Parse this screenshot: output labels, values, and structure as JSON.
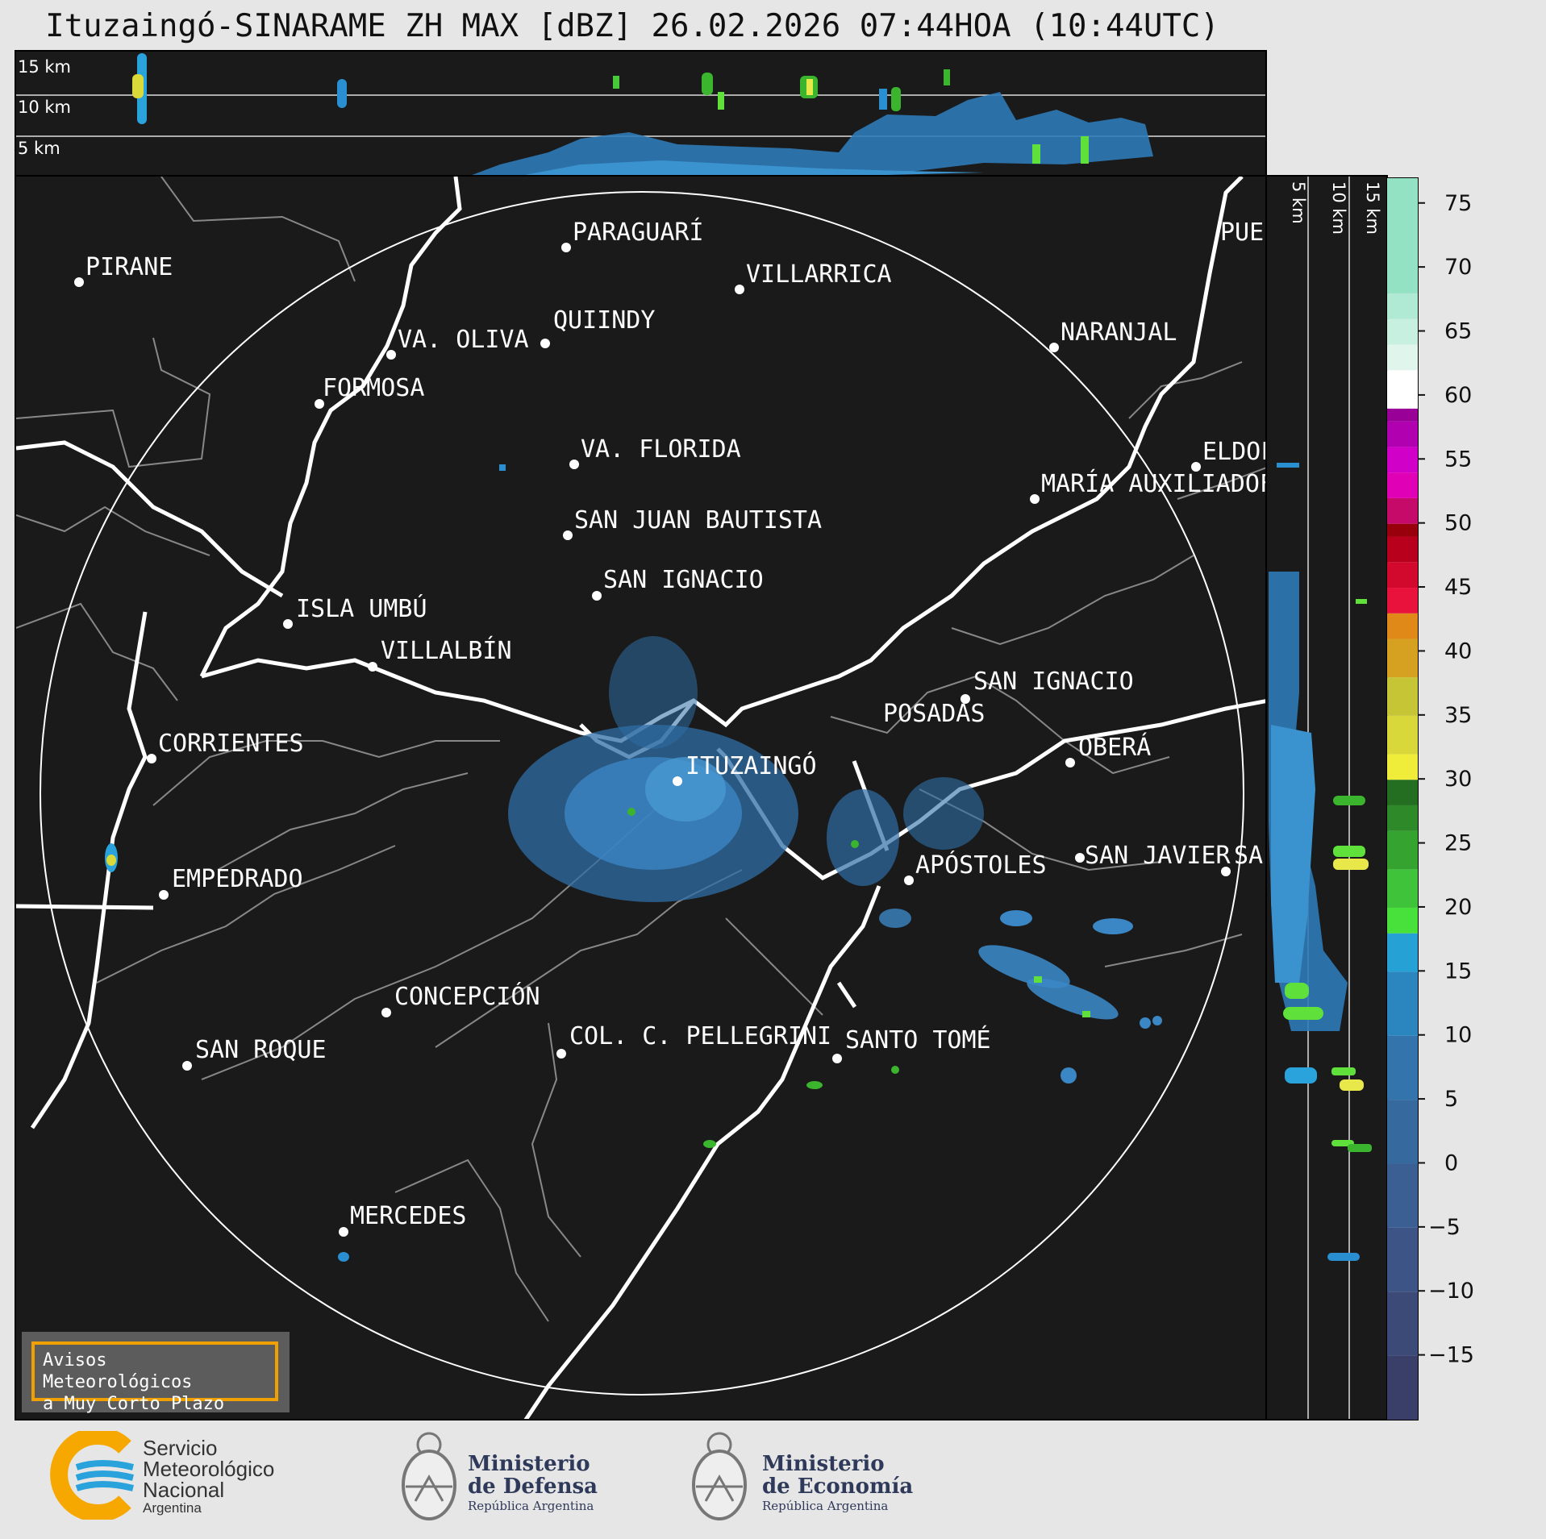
{
  "title": "Ituzaingó-SINARAME ZH MAX [dBZ] 26.02.2026 07:44HOA (10:44UTC)",
  "height_panel_top": {
    "labels": [
      "15 km",
      "10 km",
      "5 km"
    ]
  },
  "height_panel_side": {
    "labels": [
      "5 km",
      "10 km",
      "15 km"
    ]
  },
  "cities": [
    {
      "name": "PIRANE"
    },
    {
      "name": "PARAGUARÍ"
    },
    {
      "name": "VILLARRICA"
    },
    {
      "name": "QUIINDY"
    },
    {
      "name": "VA. OLIVA"
    },
    {
      "name": "FORMOSA"
    },
    {
      "name": "NARANJAL"
    },
    {
      "name": "PUEF"
    },
    {
      "name": "VA. FLORIDA"
    },
    {
      "name": "ELDOF"
    },
    {
      "name": "MARÍA AUXILIADOF"
    },
    {
      "name": "SAN JUAN BAUTISTA"
    },
    {
      "name": "SAN IGNACIO"
    },
    {
      "name": "ISLA UMBÚ"
    },
    {
      "name": "VILLALBÍN"
    },
    {
      "name": "SAN IGNACIO"
    },
    {
      "name": "POSADAS"
    },
    {
      "name": "CORRIENTES"
    },
    {
      "name": "ITUZAINGÓ"
    },
    {
      "name": "OBERÁ"
    },
    {
      "name": "APÓSTOLES"
    },
    {
      "name": "SAN JAVIER"
    },
    {
      "name": "SAI"
    },
    {
      "name": "EMPEDRADO"
    },
    {
      "name": "CONCEPCIÓN"
    },
    {
      "name": "COL. C. PELLEGRINI"
    },
    {
      "name": "SANTO TOMÉ"
    },
    {
      "name": "SAN ROQUE"
    },
    {
      "name": "MERCEDES"
    }
  ],
  "colorbar": {
    "unit": "dBZ",
    "ticks": [
      "75",
      "70",
      "65",
      "60",
      "55",
      "50",
      "45",
      "40",
      "35",
      "30",
      "25",
      "20",
      "15",
      "10",
      "5",
      "0",
      "−5",
      "−10",
      "−15"
    ],
    "range": [
      -20,
      77
    ]
  },
  "warning": {
    "line1": "Avisos Meteorológicos",
    "line2": "a Muy Corto Plazo"
  },
  "logos": {
    "smn": {
      "line1": "Servicio",
      "line2": "Meteorológico",
      "line3": "Nacional",
      "line4": "Argentina"
    },
    "defensa": {
      "line1": "Ministerio",
      "line2": "de Defensa",
      "line3": "República Argentina"
    },
    "economia": {
      "line1": "Ministerio",
      "line2": "de Economía",
      "line3": "República Argentina"
    }
  },
  "colors": {
    "background": "#1a1a1a",
    "smn_blue": "#2aa3dc",
    "smn_yellow": "#f6a800",
    "warning_border": "#f0a000"
  }
}
